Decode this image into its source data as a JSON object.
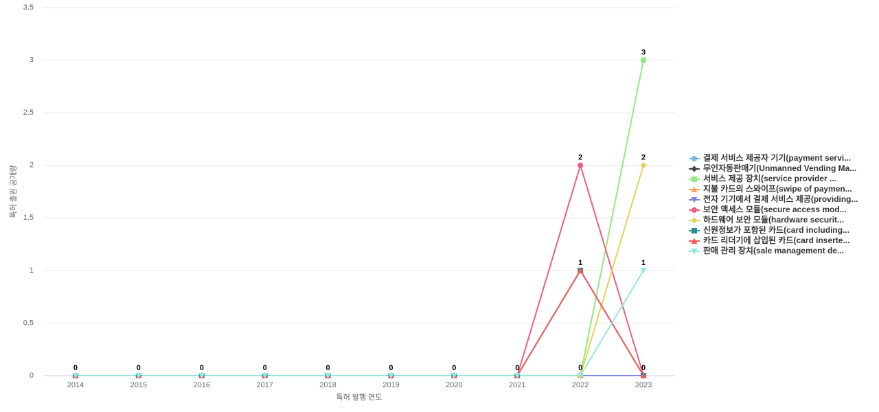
{
  "chart_data": {
    "type": "line",
    "x_label": "특허 발행 연도",
    "y_label": "특허 출원 공개량",
    "categories": [
      "2014",
      "2015",
      "2016",
      "2017",
      "2018",
      "2019",
      "2020",
      "2021",
      "2022",
      "2023"
    ],
    "ylim": [
      0,
      3.5
    ],
    "yticks": [
      0,
      0.5,
      1,
      1.5,
      2,
      2.5,
      3,
      3.5
    ],
    "grid": true,
    "series": [
      {
        "name": "결제 서비스 제공자 기기(payment servi...",
        "color": "#7cb5ec",
        "values": [
          0,
          0,
          0,
          0,
          0,
          0,
          0,
          0,
          0,
          0
        ]
      },
      {
        "name": "무인자동판매기(Unmanned Vending Ma...",
        "color": "#434348",
        "values": [
          0,
          0,
          0,
          0,
          0,
          0,
          0,
          0,
          0,
          0
        ]
      },
      {
        "name": "서비스 제공 장치(service provider ...",
        "color": "#90ed7d",
        "values": [
          0,
          0,
          0,
          0,
          0,
          0,
          0,
          0,
          0,
          3
        ]
      },
      {
        "name": "지불 카드의 스와이프(swipe of paymen...",
        "color": "#f7a35c",
        "values": [
          0,
          0,
          0,
          0,
          0,
          0,
          0,
          0,
          0,
          0
        ]
      },
      {
        "name": "전자 기기에서 결제 서비스 제공(providing...",
        "color": "#8085e9",
        "values": [
          0,
          0,
          0,
          0,
          0,
          0,
          0,
          0,
          0,
          0
        ]
      },
      {
        "name": "보안 액세스 모듈(secure access mod...",
        "color": "#f15c80",
        "values": [
          0,
          0,
          0,
          0,
          0,
          0,
          0,
          0,
          2,
          0
        ]
      },
      {
        "name": "하드웨어 보안 모듈(hardware securit...",
        "color": "#e4d354",
        "values": [
          0,
          0,
          0,
          0,
          0,
          0,
          0,
          0,
          0,
          2
        ]
      },
      {
        "name": "신원정보가 포함된 카드(card including...",
        "color": "#2b908f",
        "values": [
          0,
          0,
          0,
          0,
          0,
          0,
          0,
          0,
          1,
          0
        ]
      },
      {
        "name": "카드 리더기에 삽입된 카드(card inserte...",
        "color": "#f45b5b",
        "values": [
          0,
          0,
          0,
          0,
          0,
          0,
          0,
          0,
          1,
          0
        ]
      },
      {
        "name": "판매 관리 장치(sale management de...",
        "color": "#91e8e1",
        "values": [
          0,
          0,
          0,
          0,
          0,
          0,
          0,
          0,
          0,
          1
        ]
      }
    ]
  }
}
